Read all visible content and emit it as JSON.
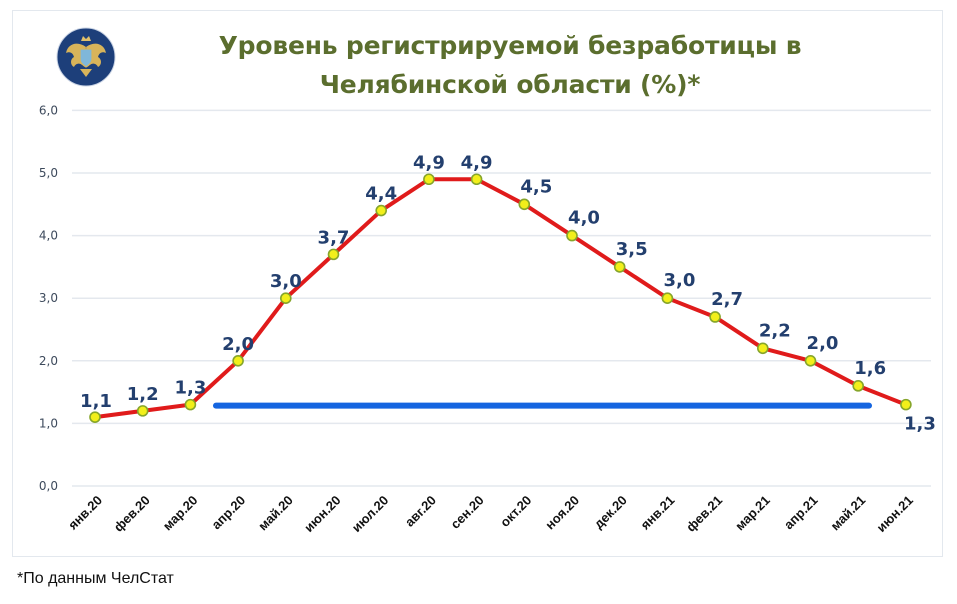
{
  "title": {
    "line1": "Уровень регистрируемой безработицы в",
    "line2": "Челябинской области (%)*"
  },
  "logo": {
    "icon": "coat-of-arms-emblem-icon",
    "colors": {
      "circle": "#1d3f7a",
      "eagle": "#d8b45a"
    }
  },
  "footer": {
    "note": "*По данным ЧелСтат"
  },
  "colors": {
    "line": "#e01b1b",
    "marker_fill": "#f2ef1a",
    "marker_stroke": "#86a52b",
    "data_label": "#233f6e",
    "reference_line": "#1565e0",
    "grid": "#e4e8ee",
    "axis_label": "#3d4a5c",
    "title": "#5b6e2e"
  },
  "chart_data": {
    "type": "line",
    "title": "Уровень регистрируемой безработицы в Челябинской области (%)*",
    "xlabel": "",
    "ylabel": "",
    "ylim": [
      0,
      6
    ],
    "yticks": [
      "0,0",
      "1,0",
      "2,0",
      "3,0",
      "4,0",
      "5,0",
      "6,0"
    ],
    "grid": true,
    "legend": null,
    "categories": [
      "янв.20",
      "фев.20",
      "мар.20",
      "апр.20",
      "май.20",
      "июн.20",
      "июл.20",
      "авг.20",
      "сен.20",
      "окт.20",
      "ноя.20",
      "дек.20",
      "янв.21",
      "фев.21",
      "мар.21",
      "апр.21",
      "май.21",
      "июн.21"
    ],
    "series": [
      {
        "name": "Уровень регистрируемой безработицы (%)",
        "values": [
          1.1,
          1.2,
          1.3,
          2.0,
          3.0,
          3.7,
          4.4,
          4.9,
          4.9,
          4.5,
          4.0,
          3.5,
          3.0,
          2.7,
          2.2,
          2.0,
          1.6,
          1.3
        ],
        "labels": [
          "1,1",
          "1,2",
          "1,3",
          "2,0",
          "3,0",
          "3,7",
          "4,4",
          "4,9",
          "4,9",
          "4,5",
          "4,0",
          "3,5",
          "3,0",
          "2,7",
          "2,2",
          "2,0",
          "1,6",
          "1,3"
        ]
      }
    ],
    "annotations": [
      {
        "type": "horizontal-line",
        "y": 1.3,
        "from": "мар.20",
        "to": "июн.21",
        "color": "#1565e0",
        "meaning": "pre-pandemic level reference"
      }
    ],
    "footnote": "*По данным ЧелСтат"
  }
}
